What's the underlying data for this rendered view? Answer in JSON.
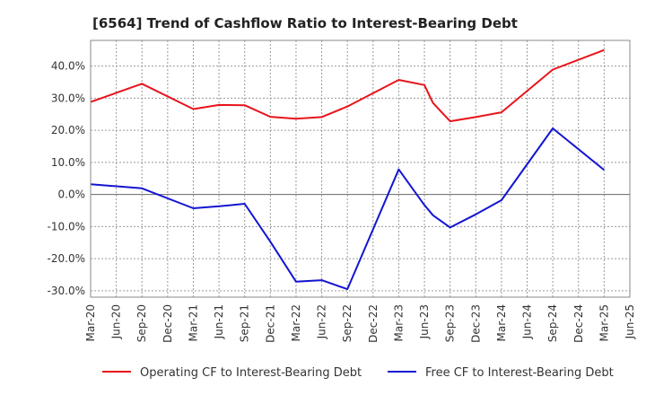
{
  "chart_data": {
    "type": "line",
    "title": "[6564]  Trend of Cashflow Ratio to Interest-Bearing Debt",
    "xlabel": "",
    "ylabel": "",
    "ylim": [
      -32,
      48
    ],
    "yticks": [
      -30,
      -20,
      -10,
      0,
      10,
      20,
      30,
      40
    ],
    "ytick_labels": [
      "-30.0%",
      "-20.0%",
      "-10.0%",
      "0.0%",
      "10.0%",
      "20.0%",
      "30.0%",
      "40.0%"
    ],
    "xticks": [
      "Mar-20",
      "Jun-20",
      "Sep-20",
      "Dec-20",
      "Mar-21",
      "Jun-21",
      "Sep-21",
      "Dec-21",
      "Mar-22",
      "Jun-22",
      "Sep-22",
      "Dec-22",
      "Mar-23",
      "Jun-23",
      "Sep-23",
      "Dec-23",
      "Mar-24",
      "Jun-24",
      "Sep-24",
      "Dec-24",
      "Mar-25",
      "Jun-25"
    ],
    "grid": true,
    "legend_position": "bottom",
    "series": [
      {
        "name": "Operating CF to Interest-Bearing Debt",
        "color": "#e8141b",
        "points": [
          {
            "x": "Mar-20",
            "y": 28.8
          },
          {
            "x": "Sep-20",
            "y": 34.5
          },
          {
            "x": "Mar-21",
            "y": 26.6
          },
          {
            "x": "Jun-21",
            "y": 27.9
          },
          {
            "x": "Sep-21",
            "y": 27.8
          },
          {
            "x": "Dec-21",
            "y": 24.2
          },
          {
            "x": "Mar-22",
            "y": 23.6
          },
          {
            "x": "Jun-22",
            "y": 24.1
          },
          {
            "x": "Sep-22",
            "y": 27.4
          },
          {
            "x": "Mar-23",
            "y": 35.7
          },
          {
            "x": "Jun-23",
            "y": 34.1
          },
          {
            "x": "Jul-23",
            "y": 28.5
          },
          {
            "x": "Sep-23",
            "y": 22.8
          },
          {
            "x": "Dec-23",
            "y": 24.1
          },
          {
            "x": "Mar-24",
            "y": 25.6
          },
          {
            "x": "Sep-24",
            "y": 38.9
          },
          {
            "x": "Mar-25",
            "y": 45.0
          }
        ]
      },
      {
        "name": "Free CF to Interest-Bearing Debt",
        "color": "#1414d2",
        "points": [
          {
            "x": "Mar-20",
            "y": 3.2
          },
          {
            "x": "Sep-20",
            "y": 1.9
          },
          {
            "x": "Mar-21",
            "y": -4.3
          },
          {
            "x": "Jun-21",
            "y": -3.7
          },
          {
            "x": "Sep-21",
            "y": -2.9
          },
          {
            "x": "Dec-21",
            "y": -14.7
          },
          {
            "x": "Mar-22",
            "y": -27.2
          },
          {
            "x": "Jun-22",
            "y": -26.7
          },
          {
            "x": "Sep-22",
            "y": -29.5
          },
          {
            "x": "Mar-23",
            "y": 7.8
          },
          {
            "x": "Jun-23",
            "y": -3.3
          },
          {
            "x": "Jul-23",
            "y": -6.5
          },
          {
            "x": "Sep-23",
            "y": -10.3
          },
          {
            "x": "Dec-23",
            "y": -6.2
          },
          {
            "x": "Mar-24",
            "y": -1.8
          },
          {
            "x": "Sep-24",
            "y": 20.6
          },
          {
            "x": "Mar-25",
            "y": 7.6
          }
        ]
      }
    ]
  }
}
